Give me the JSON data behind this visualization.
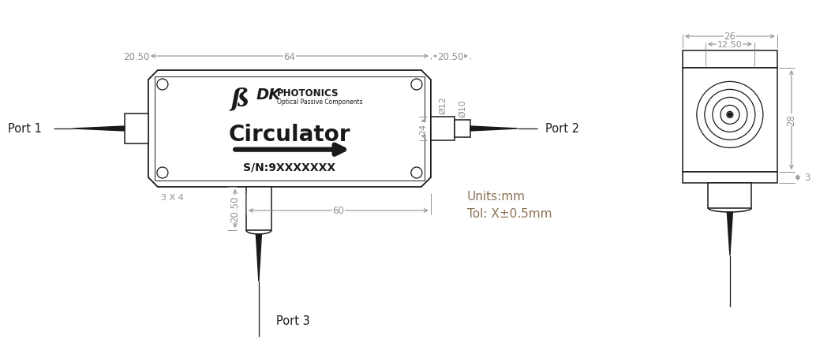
{
  "bg_color": "#ffffff",
  "line_color": "#1a1a1a",
  "dim_color": "#909090",
  "dim_text_color": "#909090",
  "label_color": "#000000",
  "dimensions": {
    "top_20_50_left": "20.50",
    "top_64": "64",
    "top_20_50_right": "20.50",
    "right_26": "26",
    "right_12_50": "12.50",
    "right_28": "28",
    "right_3": "3",
    "bottom_60": "60",
    "side_20_50": "20.50",
    "side_3x4": "3 X 4",
    "dia_12": "Ø12",
    "dia_10": "Ø10",
    "side_24": "24"
  },
  "ports": {
    "port1": "Port 1",
    "port2": "Port 2",
    "port3": "Port 3"
  },
  "label_circulator": "Circulator",
  "label_sn": "S/N:9XXXXXXX",
  "label_units": "Units:mm",
  "label_tol": "Tol: X±0.5mm"
}
